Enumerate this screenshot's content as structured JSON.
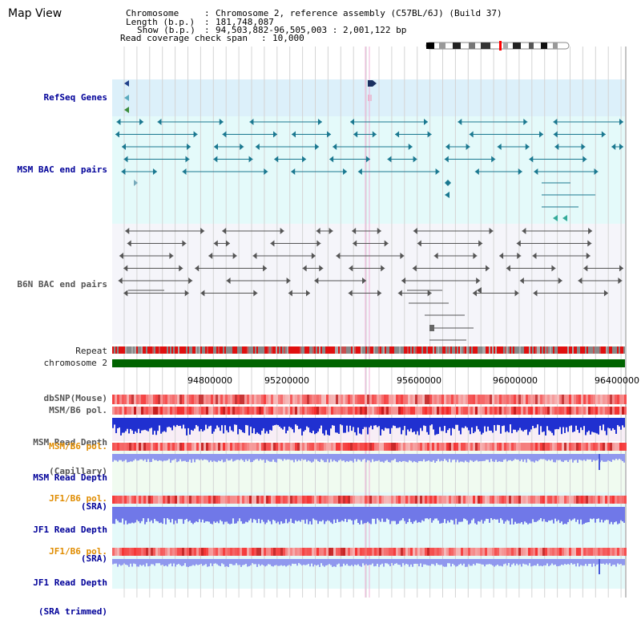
{
  "title": "Map View",
  "header": {
    "chromosome_label": "Chromosome",
    "chromosome_value": "Chromosome 2, reference assembly (C57BL/6J) (Build 37)",
    "length_label": "Length (b.p.)",
    "length_value": "181,748,087",
    "show_label": "Show (b.p.)",
    "show_value": "94,503,882-96,505,003 : 2,001,122 bp",
    "coverage_label": "Read coverage check span",
    "coverage_value": "10,000"
  },
  "tracks": {
    "refseq": "RefSeq Genes",
    "msm_bac": "MSM BAC end pairs",
    "b6n_bac": "B6N BAC end pairs",
    "repeat": "Repeat",
    "chromosome": "chromosome 2",
    "dbsnp": "dbSNP(Mouse)",
    "msm_b6_pol": "MSM/B6 pol.",
    "msm_depth_cap_1": "MSM Read Depth",
    "msm_depth_cap_2": "(Capillary)",
    "msm_b6_pol_sra": "MSM/B6 pol.",
    "msm_depth_sra_1": "MSM Read Depth",
    "msm_depth_sra_2": "(SRA)",
    "jf1_b6_pol": "JF1/B6 pol.",
    "jf1_depth_1": "JF1 Read Depth",
    "jf1_depth_2": "(SRA)",
    "jf1_b6_pol_trim": "JF1/B6 pol.",
    "jf1_trim_1": "JF1 Read Depth",
    "jf1_trim_2": "(SRA trimmed)"
  },
  "axis": {
    "ticks": [
      "94800000",
      "95200000",
      "95600000",
      "96000000",
      "96400000"
    ]
  },
  "colors": {
    "refseq_bg": "#dcf0fa",
    "msm_bg": "#e4fafa",
    "b6n_bg": "#f5f5fa",
    "chromosome_bar": "#006400",
    "navy_label": "#000099",
    "orange_label": "#e08c00",
    "msm_feature": "#1a7890",
    "b6n_feature": "#555555"
  }
}
